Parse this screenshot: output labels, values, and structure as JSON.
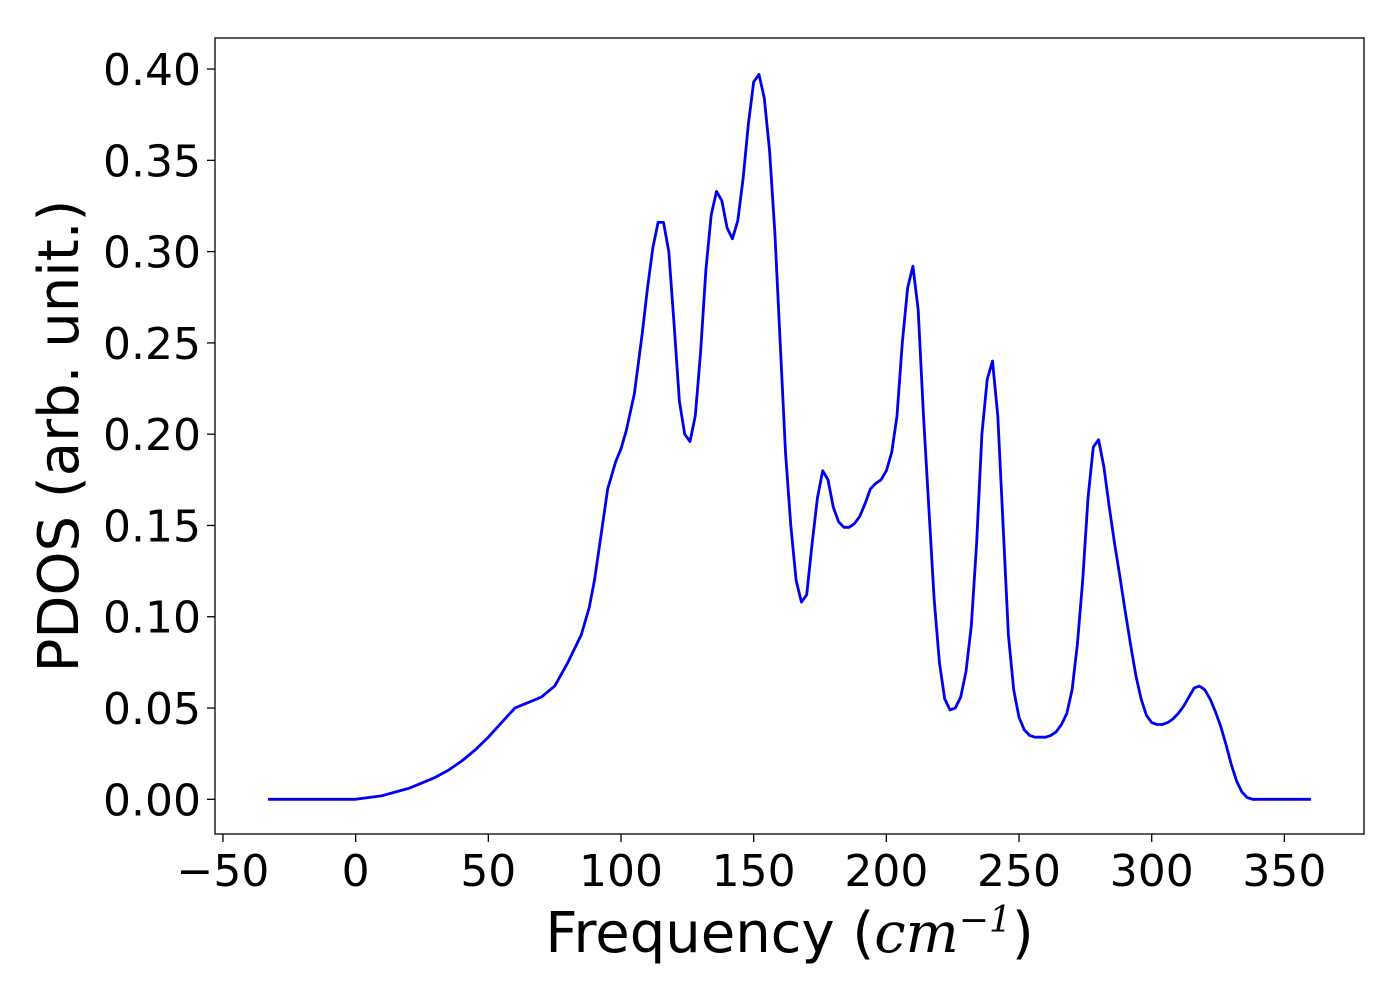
{
  "chart_data": {
    "type": "line",
    "title": "",
    "xlabel": "Frequency (",
    "xlabel_unit": "cm",
    "xlabel_exponent": "−1",
    "xlabel_close": ")",
    "ylabel": "PDOS (arb. unit.)",
    "xlim": [
      -53,
      380
    ],
    "ylim": [
      -0.019,
      0.417
    ],
    "xticks": [
      -50,
      0,
      50,
      100,
      150,
      200,
      250,
      300,
      350
    ],
    "xtick_labels": [
      "−50",
      "0",
      "50",
      "100",
      "150",
      "200",
      "250",
      "300",
      "350"
    ],
    "yticks": [
      0.0,
      0.05,
      0.1,
      0.15,
      0.2,
      0.25,
      0.3,
      0.35,
      0.4
    ],
    "ytick_labels": [
      "0.00",
      "0.05",
      "0.10",
      "0.15",
      "0.20",
      "0.25",
      "0.30",
      "0.35",
      "0.40"
    ],
    "grid": false,
    "series": [
      {
        "color": "#0000ee",
        "x": [
          -33,
          0,
          5,
          10,
          15,
          20,
          25,
          30,
          35,
          40,
          45,
          50,
          55,
          60,
          65,
          70,
          75,
          80,
          85,
          88,
          90,
          92,
          95,
          98,
          100,
          102,
          105,
          108,
          110,
          112,
          114,
          116,
          118,
          120,
          122,
          124,
          126,
          128,
          130,
          132,
          134,
          136,
          138,
          140,
          142,
          144,
          146,
          148,
          150,
          152,
          154,
          156,
          158,
          160,
          162,
          164,
          166,
          168,
          170,
          172,
          174,
          176,
          178,
          180,
          182,
          184,
          186,
          188,
          190,
          192,
          194,
          196,
          198,
          200,
          202,
          204,
          206,
          208,
          210,
          212,
          214,
          216,
          218,
          220,
          222,
          224,
          226,
          228,
          230,
          232,
          234,
          236,
          238,
          240,
          242,
          244,
          246,
          248,
          250,
          252,
          254,
          256,
          258,
          260,
          262,
          264,
          266,
          268,
          270,
          272,
          274,
          276,
          278,
          280,
          282,
          284,
          286,
          288,
          290,
          292,
          294,
          296,
          298,
          300,
          302,
          304,
          306,
          308,
          310,
          312,
          314,
          316,
          318,
          320,
          322,
          324,
          326,
          328,
          330,
          332,
          334,
          336,
          338,
          340,
          345,
          350,
          360
        ],
        "y": [
          0.0,
          0.0,
          0.001,
          0.002,
          0.004,
          0.006,
          0.009,
          0.012,
          0.016,
          0.021,
          0.027,
          0.034,
          0.042,
          0.05,
          0.053,
          0.056,
          0.062,
          0.075,
          0.09,
          0.105,
          0.12,
          0.14,
          0.17,
          0.185,
          0.192,
          0.202,
          0.222,
          0.255,
          0.28,
          0.302,
          0.316,
          0.316,
          0.3,
          0.26,
          0.218,
          0.2,
          0.196,
          0.21,
          0.245,
          0.29,
          0.32,
          0.333,
          0.328,
          0.313,
          0.307,
          0.317,
          0.34,
          0.37,
          0.393,
          0.397,
          0.384,
          0.355,
          0.31,
          0.25,
          0.19,
          0.15,
          0.12,
          0.108,
          0.112,
          0.14,
          0.165,
          0.18,
          0.175,
          0.16,
          0.152,
          0.149,
          0.149,
          0.151,
          0.155,
          0.162,
          0.17,
          0.173,
          0.175,
          0.18,
          0.19,
          0.21,
          0.25,
          0.28,
          0.292,
          0.268,
          0.21,
          0.16,
          0.11,
          0.075,
          0.055,
          0.049,
          0.05,
          0.056,
          0.07,
          0.095,
          0.14,
          0.2,
          0.23,
          0.24,
          0.21,
          0.15,
          0.09,
          0.06,
          0.045,
          0.038,
          0.035,
          0.034,
          0.034,
          0.034,
          0.035,
          0.037,
          0.041,
          0.047,
          0.06,
          0.085,
          0.12,
          0.165,
          0.193,
          0.197,
          0.182,
          0.16,
          0.14,
          0.122,
          0.103,
          0.085,
          0.068,
          0.055,
          0.046,
          0.042,
          0.041,
          0.041,
          0.042,
          0.044,
          0.047,
          0.051,
          0.056,
          0.061,
          0.062,
          0.06,
          0.055,
          0.048,
          0.04,
          0.03,
          0.019,
          0.01,
          0.004,
          0.001,
          0.0,
          0.0,
          0.0,
          0.0,
          0.0
        ]
      }
    ]
  }
}
